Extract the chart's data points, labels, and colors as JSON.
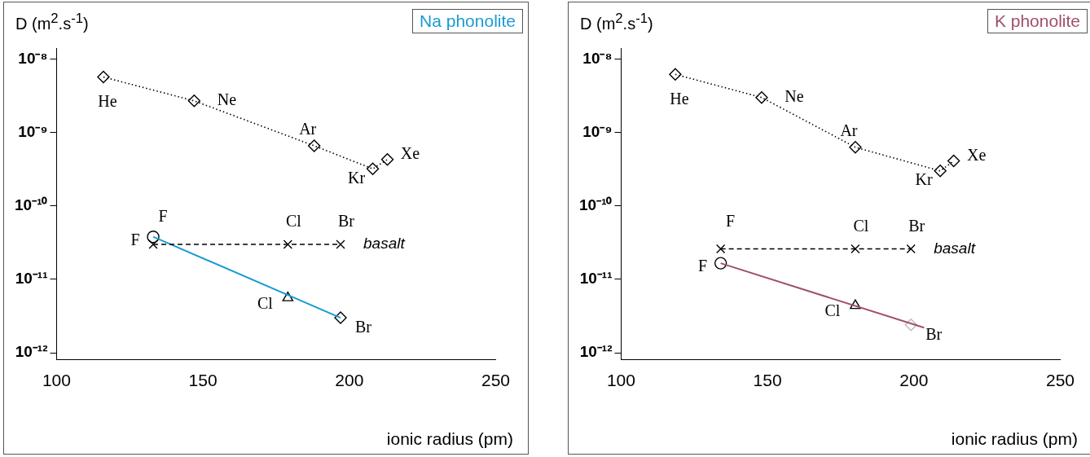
{
  "chart_data": [
    {
      "type": "scatter",
      "title": "Na phonolite",
      "ylabel": "D  (m$^{2}$.s$^{-1}$)",
      "xlabel": "ionic radius (pm)",
      "log": "y",
      "grid": false,
      "legend": false,
      "xlim": [
        100,
        250
      ],
      "xticks": [
        100,
        150,
        200,
        250
      ],
      "ylim": [
        8e-13,
        1.4e-08
      ],
      "yticks": [
        {
          "value": 1e-08,
          "label": "10⁻⁸"
        },
        {
          "value": 1e-09,
          "label": "10⁻⁹"
        },
        {
          "value": 1e-10,
          "label": "10⁻¹⁰"
        },
        {
          "value": 1e-11,
          "label": "10⁻¹¹"
        },
        {
          "value": 1e-12,
          "label": "10⁻¹²"
        }
      ],
      "series": [
        {
          "type": "line",
          "line_style": "dotted",
          "marker": "diamond",
          "color": "#000000",
          "x": [
            116,
            147,
            188,
            208,
            213
          ],
          "values": [
            5.7e-09,
            2.7e-09,
            6.6e-10,
            3.2e-10,
            4.3e-10
          ]
        },
        {
          "name": "basalt",
          "type": "line",
          "line_style": "dashed",
          "marker": "cross",
          "color": "#000000",
          "x": [
            133,
            179,
            197
          ],
          "values": [
            3e-11,
            3e-11,
            3e-11
          ]
        },
        {
          "type": "line",
          "line_style": "solid",
          "marker": "none",
          "color": "#1a9bd0",
          "x": [
            133,
            197
          ],
          "values": [
            3.8e-11,
            3e-12
          ]
        },
        {
          "type": "scatter",
          "marker": "circle",
          "color": "#000000",
          "x": [
            133
          ],
          "values": [
            3.8e-11
          ]
        },
        {
          "type": "scatter",
          "marker": "triangle",
          "color": "#000000",
          "x": [
            179
          ],
          "values": [
            5.6e-12
          ]
        },
        {
          "type": "scatter",
          "marker": "diamond",
          "color": "#000000",
          "x": [
            197
          ],
          "values": [
            3e-12
          ]
        }
      ],
      "annotations": [
        {
          "text": "He",
          "x": 116,
          "y": 5.7e-09
        },
        {
          "text": "Ne",
          "x": 147,
          "y": 2.7e-09
        },
        {
          "text": "Ar",
          "x": 188,
          "y": 6.6e-10
        },
        {
          "text": "Kr",
          "x": 208,
          "y": 3.2e-10
        },
        {
          "text": "Xe",
          "x": 213,
          "y": 4.3e-10
        },
        {
          "text": "F",
          "x": 133,
          "y": 3e-11
        },
        {
          "text": "Cl",
          "x": 179,
          "y": 3e-11
        },
        {
          "text": "Br",
          "x": 197,
          "y": 3e-11
        },
        {
          "text": "F",
          "x": 133,
          "y": 3.8e-11
        },
        {
          "text": "Cl",
          "x": 179,
          "y": 5.6e-12
        },
        {
          "text": "Br",
          "x": 197,
          "y": 3e-12
        }
      ]
    },
    {
      "type": "scatter",
      "title": "K phonolite",
      "ylabel": "D  (m$^{2}$.s$^{-1}$)",
      "xlabel": "ionic radius (pm)",
      "log": "y",
      "grid": false,
      "legend": false,
      "xlim": [
        100,
        250
      ],
      "xticks": [
        100,
        150,
        200,
        250
      ],
      "ylim": [
        8e-13,
        1.4e-08
      ],
      "yticks": [
        {
          "value": 1e-08,
          "label": "10⁻⁸"
        },
        {
          "value": 1e-09,
          "label": "10⁻⁹"
        },
        {
          "value": 1e-10,
          "label": "10⁻¹⁰"
        },
        {
          "value": 1e-11,
          "label": "10⁻¹¹"
        },
        {
          "value": 1e-12,
          "label": "10⁻¹²"
        }
      ],
      "series": [
        {
          "type": "line",
          "line_style": "dotted",
          "marker": "diamond",
          "color": "#000000",
          "x": [
            118.5,
            148,
            180,
            209,
            213.6
          ],
          "values": [
            6.2e-09,
            3e-09,
            6.3e-10,
            3e-10,
            4.1e-10
          ]
        },
        {
          "name": "basalt",
          "type": "line",
          "line_style": "dashed",
          "marker": "cross",
          "color": "#000000",
          "x": [
            134,
            180,
            199
          ],
          "values": [
            2.6e-11,
            2.6e-11,
            2.6e-11
          ]
        },
        {
          "type": "line",
          "line_style": "solid",
          "marker": "none",
          "color": "#a0506a",
          "x": [
            134,
            203.5
          ],
          "values": [
            1.66e-11,
            2.2e-12
          ]
        },
        {
          "type": "scatter",
          "marker": "circle",
          "color": "#000000",
          "x": [
            134
          ],
          "values": [
            1.66e-11
          ]
        },
        {
          "type": "scatter",
          "marker": "triangle",
          "color": "#000000",
          "x": [
            180
          ],
          "values": [
            4.4e-12
          ]
        },
        {
          "type": "scatter",
          "marker": "diamond",
          "color": "#bbbbbb",
          "x": [
            199
          ],
          "values": [
            2.4e-12
          ]
        }
      ],
      "annotations": [
        {
          "text": "He",
          "x": 118.5,
          "y": 6.2e-09
        },
        {
          "text": "Ne",
          "x": 148,
          "y": 3e-09
        },
        {
          "text": "Ar",
          "x": 180,
          "y": 6.3e-10
        },
        {
          "text": "Kr",
          "x": 209,
          "y": 3e-10
        },
        {
          "text": "Xe",
          "x": 213.6,
          "y": 4.1e-10
        },
        {
          "text": "F",
          "x": 134,
          "y": 2.6e-11
        },
        {
          "text": "Cl",
          "x": 180,
          "y": 2.6e-11
        },
        {
          "text": "Br",
          "x": 199,
          "y": 2.6e-11
        },
        {
          "text": "F",
          "x": 134,
          "y": 1.66e-11
        },
        {
          "text": "Cl",
          "x": 180,
          "y": 4.4e-12
        },
        {
          "text": "Br",
          "x": 199,
          "y": 2.4e-12
        }
      ]
    }
  ]
}
